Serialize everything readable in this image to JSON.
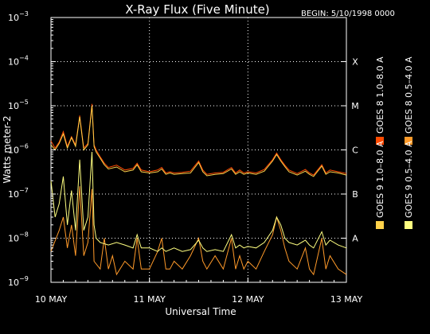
{
  "chart_data": {
    "type": "line",
    "title": "X-Ray Flux (Five Minute)",
    "begin": "BEGIN: 5/10/1998 0000",
    "xlabel": "Universal Time",
    "ylabel": "Watts meter-2",
    "ylim": [
      1e-09,
      0.001
    ],
    "yscale": "log",
    "xlim": [
      0,
      72
    ],
    "x_unit": "hours since 10 MAY 0000 UT",
    "x_ticks": [
      {
        "x": 0,
        "label": "10 MAY"
      },
      {
        "x": 24,
        "label": "11 MAY"
      },
      {
        "x": 48,
        "label": "12 MAY"
      },
      {
        "x": 72,
        "label": "13 MAY"
      }
    ],
    "y_ticks": [
      {
        "exp": -3,
        "base": "10",
        "sup": "−3"
      },
      {
        "exp": -4,
        "base": "10",
        "sup": "−4"
      },
      {
        "exp": -5,
        "base": "10",
        "sup": "−5"
      },
      {
        "exp": -6,
        "base": "10",
        "sup": "−6"
      },
      {
        "exp": -7,
        "base": "10",
        "sup": "−7"
      },
      {
        "exp": -8,
        "base": "10",
        "sup": "−8"
      },
      {
        "exp": -9,
        "base": "10",
        "sup": "−9"
      }
    ],
    "flare_classes": [
      {
        "label": "X",
        "exp": -4
      },
      {
        "label": "M",
        "exp": -5
      },
      {
        "label": "C",
        "exp": -6
      },
      {
        "label": "B",
        "exp": -7
      },
      {
        "label": "A",
        "exp": -8
      }
    ],
    "grid": true,
    "legend_position": "right",
    "series": [
      {
        "name": "GOES 8 1.0–8.0 A",
        "color": "#ff4a00",
        "points": [
          [
            0,
            1.6e-06
          ],
          [
            1,
            1.1e-06
          ],
          [
            2,
            1.5e-06
          ],
          [
            3,
            2.6e-06
          ],
          [
            4,
            1.2e-06
          ],
          [
            5,
            2e-06
          ],
          [
            6,
            1.3e-06
          ],
          [
            7,
            6e-06
          ],
          [
            8,
            1.1e-06
          ],
          [
            9,
            1.4e-06
          ],
          [
            10,
            1.1e-05
          ],
          [
            10.5,
            1.3e-06
          ],
          [
            11,
            1e-06
          ],
          [
            12,
            7e-07
          ],
          [
            13,
            5e-07
          ],
          [
            14,
            4e-07
          ],
          [
            16,
            4.5e-07
          ],
          [
            18,
            3.5e-07
          ],
          [
            20,
            3.8e-07
          ],
          [
            21,
            5e-07
          ],
          [
            22,
            3.5e-07
          ],
          [
            24,
            3.2e-07
          ],
          [
            26,
            3.5e-07
          ],
          [
            27,
            4e-07
          ],
          [
            28,
            3e-07
          ],
          [
            29,
            3.2e-07
          ],
          [
            30,
            3e-07
          ],
          [
            32,
            3.1e-07
          ],
          [
            34,
            3.3e-07
          ],
          [
            36,
            5.6e-07
          ],
          [
            37,
            3.5e-07
          ],
          [
            38,
            2.8e-07
          ],
          [
            40,
            3e-07
          ],
          [
            42,
            3.1e-07
          ],
          [
            44,
            4e-07
          ],
          [
            45,
            3e-07
          ],
          [
            46,
            3.5e-07
          ],
          [
            47,
            3e-07
          ],
          [
            48,
            3.2e-07
          ],
          [
            50,
            3e-07
          ],
          [
            52,
            3.6e-07
          ],
          [
            54,
            6e-07
          ],
          [
            55,
            8.5e-07
          ],
          [
            56,
            6e-07
          ],
          [
            57,
            4.5e-07
          ],
          [
            58,
            3.5e-07
          ],
          [
            60,
            2.9e-07
          ],
          [
            62,
            3.6e-07
          ],
          [
            63,
            3e-07
          ],
          [
            64,
            2.7e-07
          ],
          [
            66,
            4.6e-07
          ],
          [
            67,
            3e-07
          ],
          [
            68,
            3.5e-07
          ],
          [
            70,
            3.2e-07
          ],
          [
            72,
            2.9e-07
          ]
        ]
      },
      {
        "name": "GOES 8 0.5–4.0 A",
        "color": "#ff9a2a",
        "points": [
          [
            0,
            5e-09
          ],
          [
            2,
            1.5e-08
          ],
          [
            3,
            3e-08
          ],
          [
            4,
            6e-09
          ],
          [
            5,
            2e-08
          ],
          [
            6,
            4e-09
          ],
          [
            7,
            1.5e-07
          ],
          [
            8,
            4e-09
          ],
          [
            9,
            8e-09
          ],
          [
            10,
            1.3e-07
          ],
          [
            10.5,
            3e-09
          ],
          [
            12,
            2e-09
          ],
          [
            13,
            1e-08
          ],
          [
            14,
            2e-09
          ],
          [
            15,
            4e-09
          ],
          [
            16,
            1.5e-09
          ],
          [
            18,
            3e-09
          ],
          [
            20,
            2e-09
          ],
          [
            21,
            1e-08
          ],
          [
            22,
            2e-09
          ],
          [
            24,
            2e-09
          ],
          [
            26,
            5e-09
          ],
          [
            27,
            1e-08
          ],
          [
            28,
            2e-09
          ],
          [
            29,
            2e-09
          ],
          [
            30,
            3e-09
          ],
          [
            32,
            2e-09
          ],
          [
            34,
            4e-09
          ],
          [
            36,
            1e-08
          ],
          [
            37,
            3e-09
          ],
          [
            38,
            2e-09
          ],
          [
            40,
            4e-09
          ],
          [
            42,
            2e-09
          ],
          [
            44,
            1e-08
          ],
          [
            45,
            2e-09
          ],
          [
            46,
            4e-09
          ],
          [
            47,
            2e-09
          ],
          [
            48,
            3e-09
          ],
          [
            50,
            2e-09
          ],
          [
            52,
            5e-09
          ],
          [
            54,
            1.2e-08
          ],
          [
            55,
            3e-08
          ],
          [
            56,
            1.5e-08
          ],
          [
            57,
            6e-09
          ],
          [
            58,
            3e-09
          ],
          [
            60,
            2e-09
          ],
          [
            62,
            6e-09
          ],
          [
            63,
            2e-09
          ],
          [
            64,
            1.5e-09
          ],
          [
            66,
            1e-08
          ],
          [
            67,
            2e-09
          ],
          [
            68,
            4e-09
          ],
          [
            70,
            2e-09
          ],
          [
            72,
            1.5e-09
          ]
        ]
      },
      {
        "name": "GOES 9 1.0–8.0 A",
        "color": "#ffd24a",
        "points": [
          [
            0,
            1.3e-06
          ],
          [
            1,
            1e-06
          ],
          [
            2,
            1.4e-06
          ],
          [
            3,
            2.3e-06
          ],
          [
            4,
            1.1e-06
          ],
          [
            5,
            1.9e-06
          ],
          [
            6,
            1.2e-06
          ],
          [
            7,
            5.6e-06
          ],
          [
            8,
            1e-06
          ],
          [
            9,
            1.3e-06
          ],
          [
            10,
            1e-05
          ],
          [
            10.5,
            1.2e-06
          ],
          [
            11,
            9e-07
          ],
          [
            12,
            6.5e-07
          ],
          [
            13,
            4.6e-07
          ],
          [
            14,
            3.7e-07
          ],
          [
            16,
            4.1e-07
          ],
          [
            18,
            3.2e-07
          ],
          [
            20,
            3.5e-07
          ],
          [
            21,
            4.6e-07
          ],
          [
            22,
            3.2e-07
          ],
          [
            24,
            3e-07
          ],
          [
            26,
            3.2e-07
          ],
          [
            27,
            3.7e-07
          ],
          [
            28,
            2.8e-07
          ],
          [
            29,
            3e-07
          ],
          [
            30,
            2.8e-07
          ],
          [
            32,
            2.9e-07
          ],
          [
            34,
            3e-07
          ],
          [
            36,
            5.2e-07
          ],
          [
            37,
            3.2e-07
          ],
          [
            38,
            2.6e-07
          ],
          [
            40,
            2.8e-07
          ],
          [
            42,
            2.9e-07
          ],
          [
            44,
            3.7e-07
          ],
          [
            45,
            2.8e-07
          ],
          [
            46,
            3.2e-07
          ],
          [
            47,
            2.8e-07
          ],
          [
            48,
            3e-07
          ],
          [
            50,
            2.8e-07
          ],
          [
            52,
            3.3e-07
          ],
          [
            54,
            5.6e-07
          ],
          [
            55,
            7.9e-07
          ],
          [
            56,
            5.6e-07
          ],
          [
            57,
            4.2e-07
          ],
          [
            58,
            3.2e-07
          ],
          [
            60,
            2.7e-07
          ],
          [
            62,
            3.3e-07
          ],
          [
            63,
            2.8e-07
          ],
          [
            64,
            2.5e-07
          ],
          [
            66,
            4.3e-07
          ],
          [
            67,
            2.8e-07
          ],
          [
            68,
            3.2e-07
          ],
          [
            70,
            3e-07
          ],
          [
            72,
            2.7e-07
          ]
        ]
      },
      {
        "name": "GOES 9 0.5–4.0 A",
        "color": "#ffff80",
        "points": [
          [
            0,
            2e-07
          ],
          [
            1,
            3e-08
          ],
          [
            2,
            6e-08
          ],
          [
            3,
            2.5e-07
          ],
          [
            4,
            2e-08
          ],
          [
            5,
            1.2e-07
          ],
          [
            6,
            1.5e-08
          ],
          [
            7,
            6e-07
          ],
          [
            8,
            1.5e-08
          ],
          [
            9,
            3e-08
          ],
          [
            10,
            9e-07
          ],
          [
            10.5,
            2e-08
          ],
          [
            11,
            1e-08
          ],
          [
            12,
            8e-09
          ],
          [
            14,
            7e-09
          ],
          [
            16,
            8e-09
          ],
          [
            18,
            7e-09
          ],
          [
            20,
            6e-09
          ],
          [
            21,
            1.2e-08
          ],
          [
            22,
            6e-09
          ],
          [
            24,
            6e-09
          ],
          [
            26,
            5e-09
          ],
          [
            27,
            6e-09
          ],
          [
            28,
            5e-09
          ],
          [
            30,
            6e-09
          ],
          [
            32,
            5e-09
          ],
          [
            34,
            5.5e-09
          ],
          [
            36,
            9e-09
          ],
          [
            37,
            6e-09
          ],
          [
            38,
            5e-09
          ],
          [
            40,
            5.5e-09
          ],
          [
            42,
            5e-09
          ],
          [
            44,
            1.2e-08
          ],
          [
            45,
            6e-09
          ],
          [
            46,
            7e-09
          ],
          [
            47,
            6e-09
          ],
          [
            48,
            6.5e-09
          ],
          [
            50,
            6e-09
          ],
          [
            52,
            8e-09
          ],
          [
            54,
            1.5e-08
          ],
          [
            55,
            3e-08
          ],
          [
            56,
            2e-08
          ],
          [
            57,
            1e-08
          ],
          [
            58,
            8e-09
          ],
          [
            60,
            7e-09
          ],
          [
            62,
            9e-09
          ],
          [
            63,
            7e-09
          ],
          [
            64,
            6e-09
          ],
          [
            66,
            1.4e-08
          ],
          [
            67,
            7e-09
          ],
          [
            68,
            9e-09
          ],
          [
            70,
            7e-09
          ],
          [
            72,
            6e-09
          ]
        ]
      }
    ]
  }
}
